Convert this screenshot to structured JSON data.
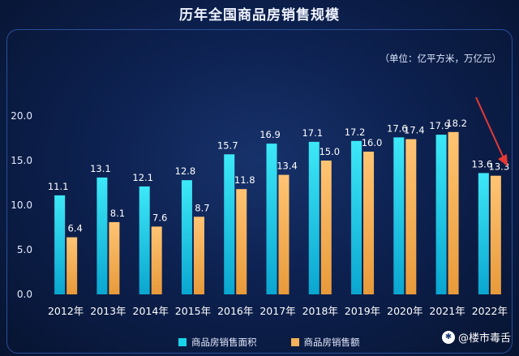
{
  "title": "历年全国商品房销售规模",
  "unit_note": "（单位：亿平方米，万亿元）",
  "brand": {
    "name": "@楼市毒舌"
  },
  "colors": {
    "area": "#19d3ea",
    "amount": "#f5b05a",
    "arrow": "#e53935"
  },
  "chart_data": {
    "type": "bar",
    "categories": [
      "2012年",
      "2013年",
      "2014年",
      "2015年",
      "2016年",
      "2017年",
      "2018年",
      "2019年",
      "2020年",
      "2021年",
      "2022年"
    ],
    "series": [
      {
        "name": "商品房销售面积",
        "values": [
          11.1,
          13.1,
          12.1,
          12.8,
          15.7,
          16.9,
          17.1,
          17.2,
          17.6,
          17.9,
          13.6
        ]
      },
      {
        "name": "商品房销售额",
        "values": [
          6.4,
          8.1,
          7.6,
          8.7,
          11.8,
          13.4,
          15.0,
          16.0,
          17.4,
          18.2,
          13.3
        ]
      }
    ],
    "ylim": [
      0,
      20
    ],
    "yticks": [
      "0.0",
      "5.0",
      "10.0",
      "15.0",
      "20.0"
    ],
    "grid": false,
    "legend": "bottom"
  }
}
